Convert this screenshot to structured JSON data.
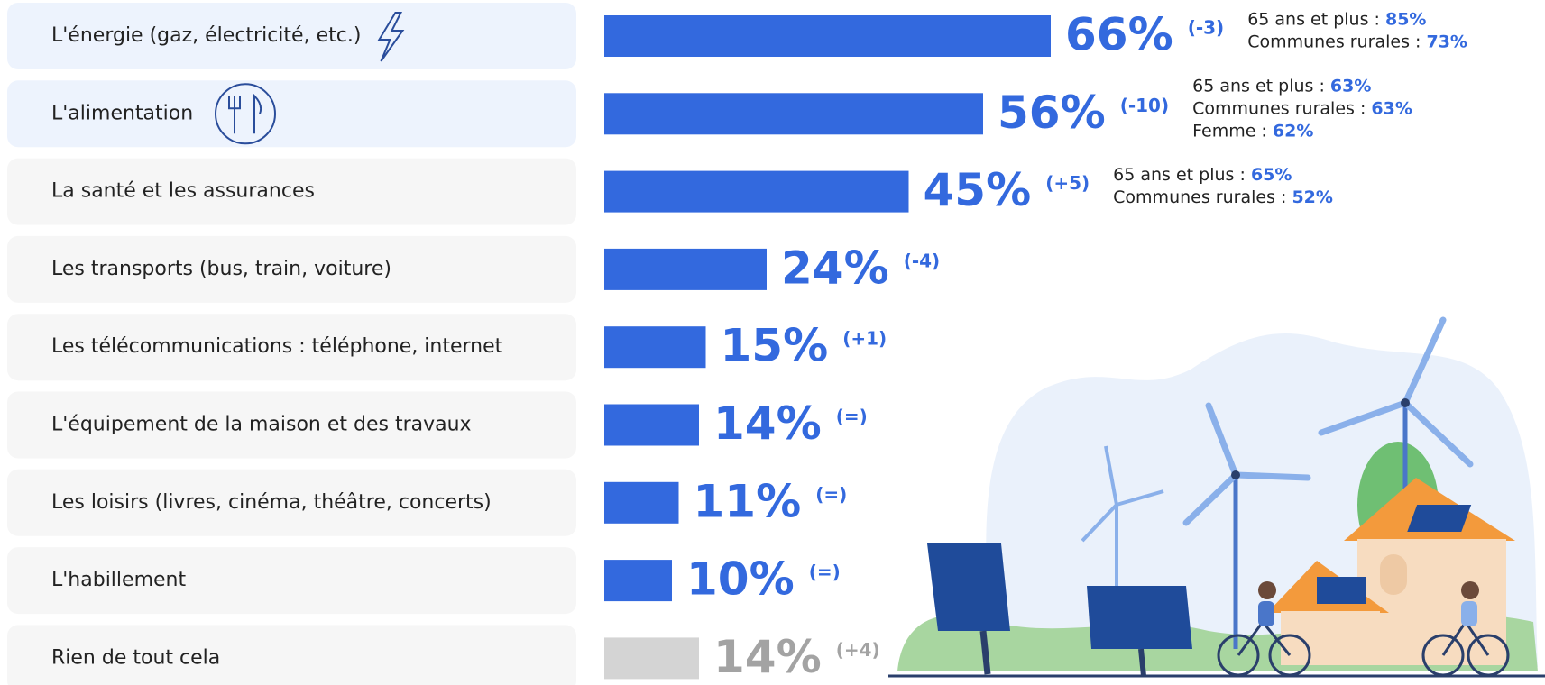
{
  "chart_data": {
    "type": "bar",
    "categories": [
      "L'énergie (gaz, électricité, etc.)",
      "L'alimentation",
      "La santé et les assurances",
      "Les transports (bus, train, voiture)",
      "Les télécommunications : téléphone, internet",
      "L'équipement de la maison et des travaux",
      "Les loisirs (livres, cinéma, théâtre, concerts)",
      "L'habillement",
      "Rien de tout cela"
    ],
    "values": [
      66,
      56,
      45,
      24,
      15,
      14,
      11,
      10,
      14
    ],
    "value_labels": [
      "66%",
      "56%",
      "45%",
      "24%",
      "15%",
      "14%",
      "11%",
      "10%",
      "14%"
    ],
    "changes": [
      "(-3)",
      "(-10)",
      "(+5)",
      "(-4)",
      "(+1)",
      "(=)",
      "(=)",
      "(=)",
      "(+4)"
    ],
    "colors": [
      "#3369de",
      "#3369de",
      "#3369de",
      "#3369de",
      "#3369de",
      "#3369de",
      "#3369de",
      "#3369de",
      "#d4d4d4"
    ],
    "label_colors": [
      "#3369de",
      "#3369de",
      "#3369de",
      "#3369de",
      "#3369de",
      "#3369de",
      "#3369de",
      "#3369de",
      "#a3a3a3"
    ],
    "notes": [
      [
        {
          "label": "65 ans et plus :",
          "value": "85%"
        },
        {
          "label": "Communes rurales :",
          "value": "73%"
        }
      ],
      [
        {
          "label": "65 ans et plus :",
          "value": "63%"
        },
        {
          "label": "Communes rurales :",
          "value": "63%"
        },
        {
          "label": "Femme :",
          "value": "62%"
        }
      ],
      [
        {
          "label": "65 ans et plus :",
          "value": "65%"
        },
        {
          "label": "Communes rurales :",
          "value": "52%"
        }
      ],
      [],
      [],
      [],
      [],
      [],
      []
    ]
  }
}
